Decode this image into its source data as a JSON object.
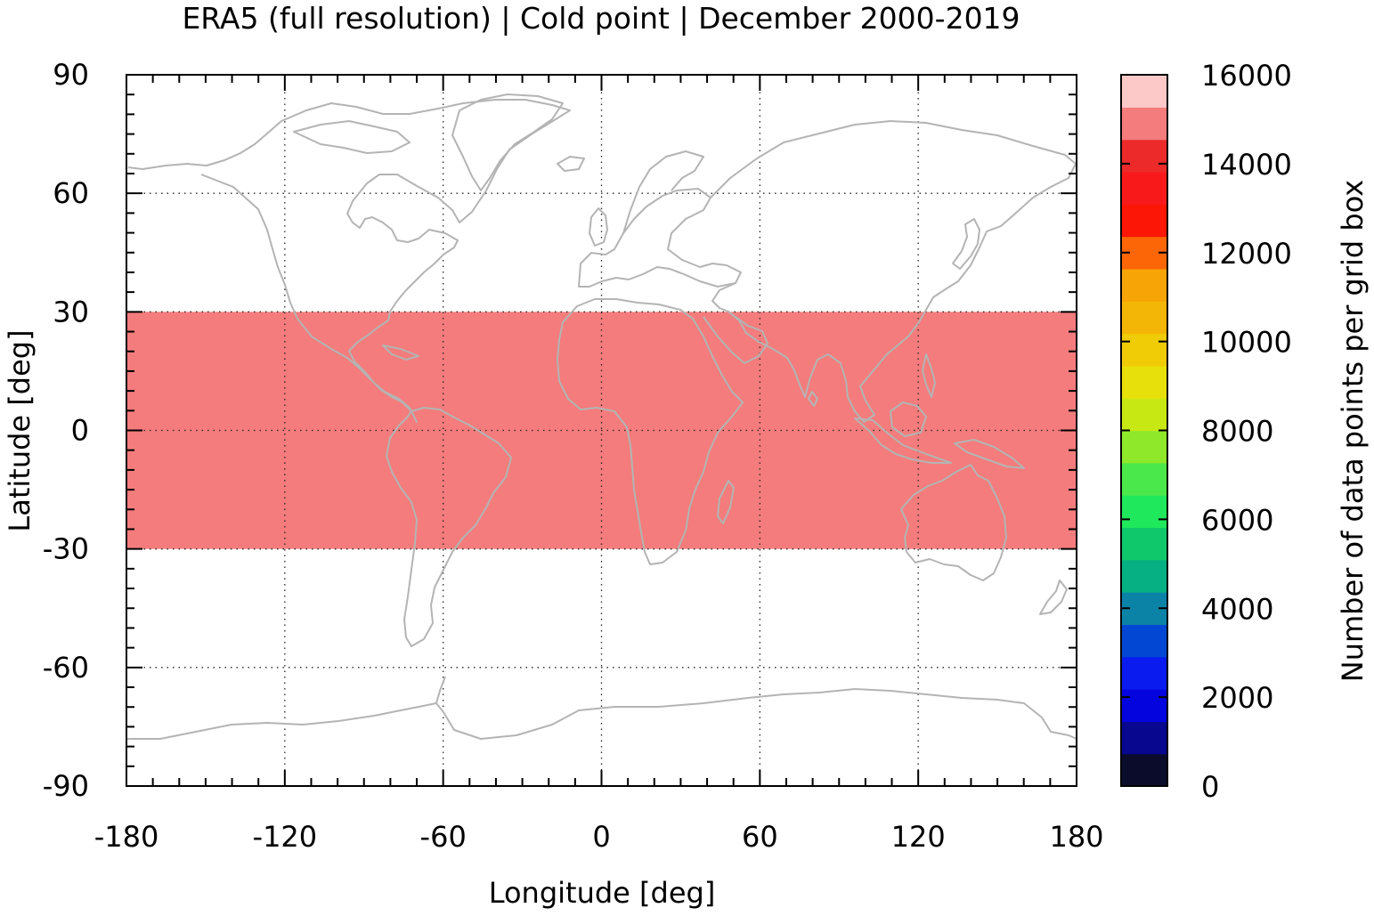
{
  "title": "ERA5 (full resolution) | Cold point | December 2000-2019",
  "map": {
    "xlabel": "Longitude [deg]",
    "ylabel": "Latitude [deg]",
    "xlim": [
      -180,
      180
    ],
    "ylim": [
      -90,
      90
    ],
    "xticks": [
      -180,
      -120,
      -60,
      0,
      60,
      120,
      180
    ],
    "xtick_labels": [
      "-180",
      "-120",
      "-60",
      "0",
      "60",
      "120",
      "180"
    ],
    "yticks": [
      -90,
      -60,
      -30,
      0,
      30,
      60,
      90
    ],
    "ytick_labels": [
      "-90",
      "-60",
      "-30",
      "0",
      "30",
      "60",
      "90"
    ],
    "grid": "dotted",
    "coastline_color": "#b4b4b4",
    "data_band": {
      "lat_min": -30,
      "lat_max": 30,
      "value": 14600,
      "color": "#f47c7c"
    }
  },
  "colorbar": {
    "label": "Number of data points per grid box",
    "min": 0,
    "max": 16000,
    "ticks": [
      0,
      2000,
      4000,
      6000,
      8000,
      10000,
      12000,
      14000,
      16000
    ],
    "tick_labels": [
      "0",
      "2000",
      "4000",
      "6000",
      "8000",
      "10000",
      "12000",
      "14000",
      "16000"
    ],
    "colors": [
      "#0b0b2c",
      "#07078f",
      "#0404df",
      "#0a1bf0",
      "#0247d4",
      "#0b83a6",
      "#07b083",
      "#10c86c",
      "#1fe85c",
      "#4ae84a",
      "#90e82a",
      "#c8e814",
      "#e8e00a",
      "#f0cc06",
      "#f4b606",
      "#f6a406",
      "#fc6606",
      "#fc1606",
      "#f81a1a",
      "#ec2a2a",
      "#f47c7c",
      "#fcc8c8"
    ]
  }
}
